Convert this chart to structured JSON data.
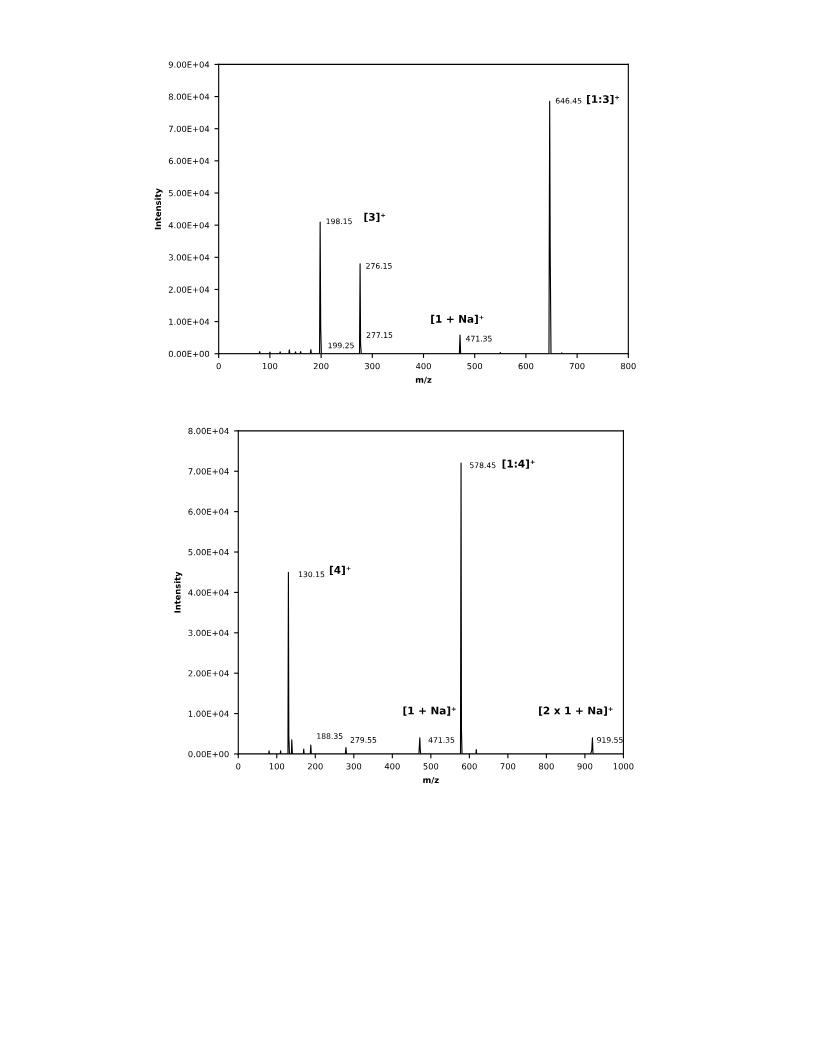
{
  "chart_data": [
    {
      "type": "line",
      "xlabel": "m/z",
      "ylabel": "Intensity",
      "xlim": [
        0,
        800
      ],
      "xticks": [
        0,
        100,
        200,
        300,
        400,
        500,
        600,
        700,
        800
      ],
      "ylim": [
        0,
        90000
      ],
      "yticks": [
        {
          "value": 0,
          "label": "0.00E+00"
        },
        {
          "value": 10000,
          "label": "1.00E+04"
        },
        {
          "value": 20000,
          "label": "2.00E+04"
        },
        {
          "value": 30000,
          "label": "3.00E+04"
        },
        {
          "value": 40000,
          "label": "4.00E+04"
        },
        {
          "value": 50000,
          "label": "5.00E+04"
        },
        {
          "value": 60000,
          "label": "6.00E+04"
        },
        {
          "value": 70000,
          "label": "7.00E+04"
        },
        {
          "value": 80000,
          "label": "8.00E+04"
        },
        {
          "value": 90000,
          "label": "9.00E+04"
        }
      ],
      "grid": false,
      "legend": false,
      "marker": "none",
      "line_style": "solid",
      "series": [
        {
          "color": "#000000",
          "x": [
            0,
            79,
            80,
            81,
            99,
            100,
            101,
            119,
            120,
            121,
            137,
            138,
            139,
            149,
            150,
            151,
            159,
            160,
            161,
            179,
            180,
            181,
            197,
            198.15,
            199.25,
            200.5,
            275,
            276.15,
            277.15,
            278.5,
            470,
            471.35,
            472.5,
            549,
            550,
            551,
            645,
            646.45,
            647.45,
            649,
            669,
            670,
            671,
            800
          ],
          "values": [
            0,
            0,
            700,
            0,
            0,
            500,
            0,
            0,
            600,
            0,
            0,
            1200,
            0,
            0,
            600,
            0,
            0,
            700,
            0,
            0,
            1300,
            0,
            0,
            41000,
            8000,
            0,
            0,
            28000,
            3000,
            0,
            0,
            5800,
            0,
            0,
            400,
            0,
            0,
            78500,
            32000,
            0,
            0,
            300,
            0,
            0
          ]
        }
      ],
      "annotations": [
        {
          "text": "198.15",
          "x": 198.15,
          "y": 41000
        },
        "[3]⁺",
        {
          "text": "199.25",
          "x": 199.25,
          "y": 8000
        },
        {
          "text": "276.15",
          "x": 276.15,
          "y": 28000
        },
        {
          "text": "277.15",
          "x": 277.15,
          "y": 3000
        },
        {
          "text": "[1 + Na]⁺",
          "x": 471.35,
          "y": 5800
        },
        {
          "text": "471.35",
          "x": 471.35,
          "y": 5800
        },
        {
          "text": "646.45",
          "x": 646.45,
          "y": 78500
        },
        "[1:3]⁺"
      ]
    },
    {
      "type": "line",
      "xlabel": "m/z",
      "ylabel": "Intensity",
      "xlim": [
        0,
        1000
      ],
      "xticks": [
        0,
        100,
        200,
        300,
        400,
        500,
        600,
        700,
        800,
        900,
        1000
      ],
      "ylim": [
        0,
        80000
      ],
      "yticks": [
        {
          "value": 0,
          "label": "0.00E+00"
        },
        {
          "value": 10000,
          "label": "1.00E+04"
        },
        {
          "value": 20000,
          "label": "2.00E+04"
        },
        {
          "value": 30000,
          "label": "3.00E+04"
        },
        {
          "value": 40000,
          "label": "4.00E+04"
        },
        {
          "value": 50000,
          "label": "5.00E+04"
        },
        {
          "value": 60000,
          "label": "6.00E+04"
        },
        {
          "value": 70000,
          "label": "7.00E+04"
        },
        {
          "value": 80000,
          "label": "8.00E+04"
        }
      ],
      "grid": false,
      "legend": false,
      "marker": "none",
      "line_style": "solid",
      "series": [
        {
          "color": "#000000",
          "x": [
            0,
            79,
            80,
            81,
            109,
            110,
            111,
            129,
            130.15,
            131.2,
            133,
            138,
            139,
            140.5,
            169,
            170,
            171,
            187,
            188.35,
            189.5,
            278,
            279.55,
            281,
            469,
            471.35,
            472.5,
            473.5,
            577,
            578.45,
            579.45,
            581,
            617,
            618,
            619,
            915,
            918,
            919.55,
            921,
            1000
          ],
          "values": [
            0,
            0,
            800,
            0,
            0,
            800,
            0,
            0,
            45000,
            4500,
            0,
            0,
            3500,
            0,
            0,
            1200,
            0,
            0,
            2200,
            0,
            0,
            1600,
            0,
            0,
            4000,
            1200,
            0,
            0,
            72000,
            6000,
            0,
            0,
            1100,
            0,
            0,
            1000,
            4000,
            0,
            0
          ]
        }
      ],
      "annotations": [
        {
          "text": "130.15",
          "x": 130.15,
          "y": 45000
        },
        "[4]⁺",
        {
          "text": "188.35",
          "x": 188.35,
          "y": 2200
        },
        {
          "text": "279.55",
          "x": 279.55,
          "y": 1600
        },
        {
          "text": "[1 + Na]⁺",
          "x": 471.35,
          "y": 4000
        },
        {
          "text": "471.35",
          "x": 471.35,
          "y": 4000
        },
        {
          "text": "578.45",
          "x": 578.45,
          "y": 72000
        },
        "[1:4]⁺",
        {
          "text": "[2 x 1 + Na]⁺",
          "x": 919.55,
          "y": 4000
        },
        {
          "text": "919.55",
          "x": 919.55,
          "y": 4000
        }
      ]
    }
  ]
}
